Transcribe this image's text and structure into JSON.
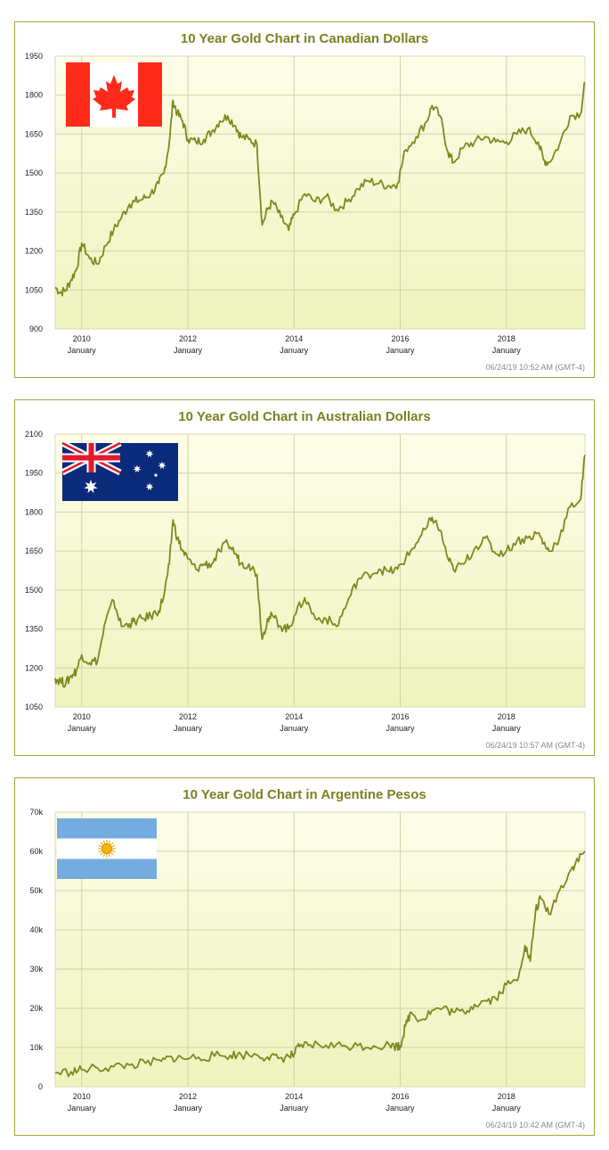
{
  "colors": {
    "line": "#7c8a1e",
    "border": "#a6a63a",
    "title": "#7a8220",
    "grid": "#cfd3a6",
    "plot_top": "#fdfde8",
    "plot_bottom": "#eff3bd"
  },
  "charts": [
    {
      "title": "10 Year Gold Chart in Canadian Dollars",
      "timestamp": "06/24/19 10:52 AM (GMT-4)",
      "flag": "canada-flag-icon",
      "y_ticks": [
        "1950",
        "1800",
        "1650",
        "1500",
        "1350",
        "1200",
        "1050",
        "900"
      ],
      "x_ticks": [
        {
          "year": "2010",
          "month": "January"
        },
        {
          "year": "2012",
          "month": "January"
        },
        {
          "year": "2014",
          "month": "January"
        },
        {
          "year": "2016",
          "month": "January"
        },
        {
          "year": "2018",
          "month": "January"
        }
      ]
    },
    {
      "title": "10 Year Gold Chart in Australian Dollars",
      "timestamp": "06/24/19 10:57 AM (GMT-4)",
      "flag": "australia-flag-icon",
      "y_ticks": [
        "2100",
        "1950",
        "1800",
        "1650",
        "1500",
        "1350",
        "1200",
        "1050"
      ],
      "x_ticks": [
        {
          "year": "2010",
          "month": "January"
        },
        {
          "year": "2012",
          "month": "January"
        },
        {
          "year": "2014",
          "month": "January"
        },
        {
          "year": "2016",
          "month": "January"
        },
        {
          "year": "2018",
          "month": "January"
        }
      ]
    },
    {
      "title": "10 Year Gold Chart in Argentine Pesos",
      "timestamp": "06/24/19 10:42 AM (GMT-4)",
      "flag": "argentina-flag-icon",
      "y_ticks": [
        "70k",
        "60k",
        "50k",
        "40k",
        "30k",
        "20k",
        "10k",
        "0"
      ],
      "x_ticks": [
        {
          "year": "2010",
          "month": "January"
        },
        {
          "year": "2012",
          "month": "January"
        },
        {
          "year": "2014",
          "month": "January"
        },
        {
          "year": "2016",
          "month": "January"
        },
        {
          "year": "2018",
          "month": "January"
        }
      ]
    }
  ],
  "chart_data": [
    {
      "type": "line",
      "title": "10 Year Gold Chart in Canadian Dollars",
      "xlabel": "",
      "ylabel": "",
      "ylim": [
        900,
        1950
      ],
      "xlim": [
        2009.5,
        2019.48
      ],
      "grid": true,
      "x": [
        2009.5,
        2009.6,
        2009.7,
        2009.8,
        2009.9,
        2010.0,
        2010.15,
        2010.3,
        2010.45,
        2010.6,
        2010.75,
        2010.9,
        2011.0,
        2011.15,
        2011.3,
        2011.45,
        2011.55,
        2011.65,
        2011.72,
        2011.8,
        2011.9,
        2012.0,
        2012.15,
        2012.3,
        2012.45,
        2012.6,
        2012.75,
        2012.9,
        2013.0,
        2013.15,
        2013.3,
        2013.4,
        2013.5,
        2013.6,
        2013.75,
        2013.9,
        2014.0,
        2014.2,
        2014.4,
        2014.6,
        2014.8,
        2015.0,
        2015.2,
        2015.4,
        2015.6,
        2015.8,
        2015.95,
        2016.1,
        2016.3,
        2016.5,
        2016.6,
        2016.75,
        2016.9,
        2017.0,
        2017.2,
        2017.4,
        2017.6,
        2017.8,
        2018.0,
        2018.2,
        2018.4,
        2018.6,
        2018.7,
        2018.8,
        2019.0,
        2019.2,
        2019.4,
        2019.48
      ],
      "series": [
        {
          "values": [
            1060,
            1040,
            1050,
            1090,
            1130,
            1230,
            1170,
            1150,
            1220,
            1280,
            1330,
            1380,
            1390,
            1400,
            1420,
            1460,
            1500,
            1620,
            1780,
            1730,
            1700,
            1630,
            1620,
            1630,
            1660,
            1700,
            1720,
            1680,
            1640,
            1630,
            1610,
            1300,
            1360,
            1390,
            1330,
            1280,
            1340,
            1420,
            1390,
            1410,
            1360,
            1390,
            1440,
            1470,
            1460,
            1450,
            1460,
            1590,
            1640,
            1700,
            1760,
            1720,
            1580,
            1540,
            1600,
            1620,
            1640,
            1620,
            1620,
            1650,
            1670,
            1620,
            1550,
            1540,
            1610,
            1720,
            1730,
            1850
          ]
        }
      ]
    },
    {
      "type": "line",
      "title": "10 Year Gold Chart in Australian Dollars",
      "xlabel": "",
      "ylabel": "",
      "ylim": [
        1050,
        2100
      ],
      "xlim": [
        2009.5,
        2019.48
      ],
      "grid": true,
      "x": [
        2009.5,
        2009.6,
        2009.7,
        2009.8,
        2009.9,
        2010.0,
        2010.15,
        2010.3,
        2010.45,
        2010.6,
        2010.75,
        2010.9,
        2011.0,
        2011.15,
        2011.3,
        2011.45,
        2011.55,
        2011.65,
        2011.72,
        2011.8,
        2011.9,
        2012.0,
        2012.15,
        2012.3,
        2012.45,
        2012.6,
        2012.75,
        2012.9,
        2013.0,
        2013.15,
        2013.3,
        2013.4,
        2013.5,
        2013.6,
        2013.75,
        2013.9,
        2014.0,
        2014.2,
        2014.4,
        2014.6,
        2014.8,
        2015.0,
        2015.2,
        2015.4,
        2015.6,
        2015.8,
        2015.95,
        2016.1,
        2016.3,
        2016.5,
        2016.6,
        2016.75,
        2016.9,
        2017.0,
        2017.2,
        2017.4,
        2017.6,
        2017.8,
        2018.0,
        2018.2,
        2018.4,
        2018.6,
        2018.7,
        2018.8,
        2019.0,
        2019.2,
        2019.4,
        2019.48
      ],
      "series": [
        {
          "values": [
            1160,
            1150,
            1140,
            1170,
            1190,
            1250,
            1220,
            1230,
            1380,
            1460,
            1360,
            1370,
            1380,
            1390,
            1400,
            1420,
            1480,
            1600,
            1770,
            1700,
            1650,
            1620,
            1580,
            1600,
            1600,
            1650,
            1680,
            1640,
            1600,
            1600,
            1560,
            1310,
            1390,
            1400,
            1360,
            1350,
            1400,
            1470,
            1390,
            1390,
            1360,
            1450,
            1540,
            1560,
            1580,
            1570,
            1580,
            1620,
            1680,
            1740,
            1780,
            1730,
            1620,
            1580,
            1600,
            1660,
            1700,
            1640,
            1650,
            1690,
            1700,
            1720,
            1680,
            1650,
            1700,
            1820,
            1850,
            2020
          ]
        }
      ]
    },
    {
      "type": "line",
      "title": "10 Year Gold Chart in Argentine Pesos",
      "xlabel": "",
      "ylabel": "",
      "ylim": [
        0,
        70000
      ],
      "xlim": [
        2009.5,
        2019.48
      ],
      "grid": true,
      "x": [
        2009.5,
        2009.8,
        2010.0,
        2010.3,
        2010.6,
        2010.9,
        2011.2,
        2011.5,
        2011.7,
        2011.9,
        2012.2,
        2012.5,
        2012.8,
        2013.0,
        2013.3,
        2013.5,
        2013.7,
        2013.9,
        2014.0,
        2014.1,
        2014.3,
        2014.6,
        2014.9,
        2015.2,
        2015.5,
        2015.8,
        2015.95,
        2016.0,
        2016.1,
        2016.2,
        2016.4,
        2016.6,
        2016.8,
        2017.0,
        2017.2,
        2017.4,
        2017.6,
        2017.8,
        2018.0,
        2018.2,
        2018.35,
        2018.45,
        2018.55,
        2018.65,
        2018.8,
        2019.0,
        2019.2,
        2019.3,
        2019.48
      ],
      "series": [
        {
          "values": [
            3500,
            3800,
            4300,
            4700,
            5100,
            5500,
            6000,
            6500,
            7500,
            7200,
            7500,
            7800,
            8000,
            8200,
            8100,
            7600,
            7200,
            7700,
            8200,
            10300,
            10700,
            10600,
            10400,
            10500,
            10400,
            10600,
            10300,
            10400,
            15500,
            19000,
            17000,
            19500,
            20000,
            19000,
            19000,
            21000,
            22000,
            22500,
            26000,
            27000,
            36000,
            32000,
            45000,
            48000,
            44000,
            50000,
            55000,
            57000,
            60000
          ]
        }
      ]
    }
  ]
}
